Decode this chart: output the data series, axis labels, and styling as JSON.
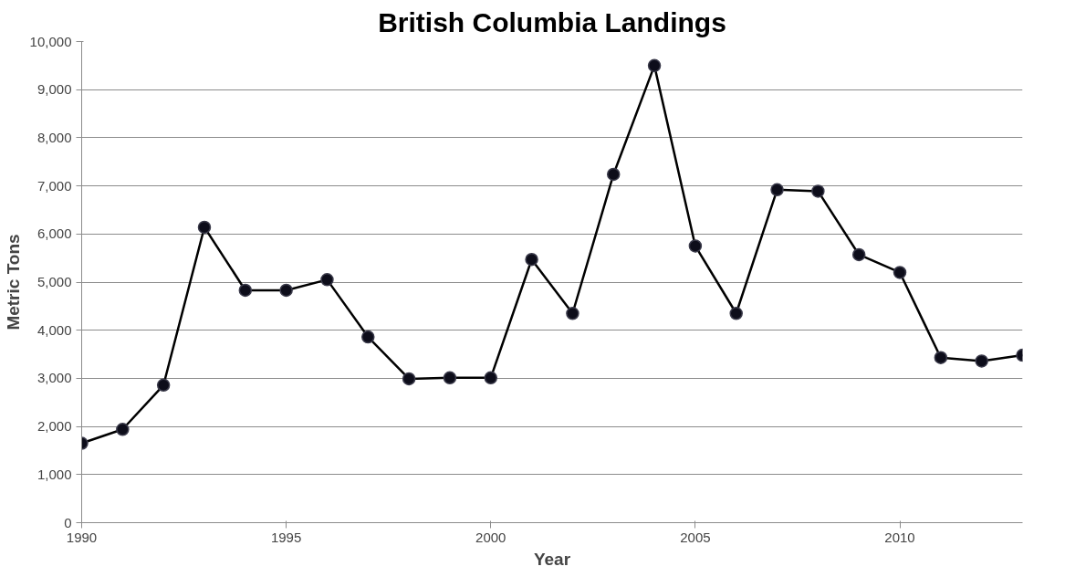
{
  "chart_data": {
    "type": "line",
    "title": "British Columbia Landings",
    "xlabel": "Year",
    "ylabel": "Metric Tons",
    "x": [
      1990,
      1991,
      1992,
      1993,
      1994,
      1995,
      1996,
      1997,
      1998,
      1999,
      2000,
      2001,
      2002,
      2003,
      2004,
      2005,
      2006,
      2007,
      2008,
      2009,
      2010,
      2011,
      2012,
      2013
    ],
    "series": [
      {
        "color": "#000000",
        "values": [
          1650,
          1940,
          2860,
          6140,
          4830,
          4830,
          5050,
          3860,
          2990,
          3010,
          3010,
          5470,
          4350,
          7240,
          9500,
          5750,
          4350,
          6920,
          6890,
          5570,
          5200,
          3430,
          3360,
          3480
        ]
      }
    ],
    "xlim": [
      1990,
      2013
    ],
    "xticks": [
      1990,
      1995,
      2000,
      2005,
      2010
    ],
    "ylim": [
      0,
      10000
    ],
    "yticks": [
      {
        "value": 0,
        "label": "0"
      },
      {
        "value": 1000,
        "label": "1,000"
      },
      {
        "value": 2000,
        "label": "2,000"
      },
      {
        "value": 3000,
        "label": "3,000"
      },
      {
        "value": 4000,
        "label": "4,000"
      },
      {
        "value": 5000,
        "label": "5,000"
      },
      {
        "value": 6000,
        "label": "6,000"
      },
      {
        "value": 7000,
        "label": "7,000"
      },
      {
        "value": 8000,
        "label": "8,000"
      },
      {
        "value": 9000,
        "label": "9,000"
      },
      {
        "value": 10000,
        "label": "10,000"
      }
    ],
    "grid": "y",
    "marker": "circle",
    "line_style": "solid"
  }
}
